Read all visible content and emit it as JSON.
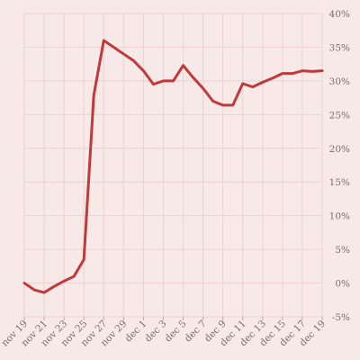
{
  "chart_data": {
    "type": "line",
    "title": "",
    "xlabel": "",
    "ylabel": "",
    "grid": true,
    "y_axis_side": "right",
    "ylim": [
      -5,
      40
    ],
    "yticks": [
      -5,
      0,
      5,
      10,
      15,
      20,
      25,
      30,
      35,
      40
    ],
    "ytick_labels": [
      "-5%",
      "0%",
      "5%",
      "10%",
      "15%",
      "20%",
      "25%",
      "30%",
      "35%",
      "40%"
    ],
    "x_tick_labels": [
      "nov 19",
      "nov 21",
      "nov 23",
      "nov 25",
      "nov 27",
      "nov 29",
      "dec 1",
      "dec 3",
      "dec 5",
      "dec 7",
      "dec 9",
      "dec 11",
      "dec 13",
      "dec 15",
      "dec 17",
      "dec 19"
    ],
    "series": [
      {
        "color": "#c0393b",
        "x": [
          "nov 19",
          "nov 20",
          "nov 21",
          "nov 22",
          "nov 23",
          "nov 24",
          "nov 25",
          "nov 26",
          "nov 27",
          "nov 28",
          "nov 29",
          "nov 30",
          "dec 1",
          "dec 2",
          "dec 3",
          "dec 4",
          "dec 5",
          "dec 6",
          "dec 7",
          "dec 8",
          "dec 9",
          "dec 10",
          "dec 11",
          "dec 12",
          "dec 13",
          "dec 14",
          "dec 15",
          "dec 16",
          "dec 17",
          "dec 18",
          "dec 19"
        ],
        "values": [
          0,
          -1.0,
          -1.4,
          -0.5,
          0.3,
          1.0,
          3.5,
          27.9,
          36.0,
          35.0,
          34.0,
          33.0,
          31.5,
          29.5,
          30.0,
          30.0,
          32.3,
          30.5,
          28.9,
          27.0,
          26.4,
          26.4,
          29.6,
          29.1,
          29.8,
          30.4,
          31.1,
          31.1,
          31.5,
          31.4,
          31.5
        ]
      }
    ]
  }
}
